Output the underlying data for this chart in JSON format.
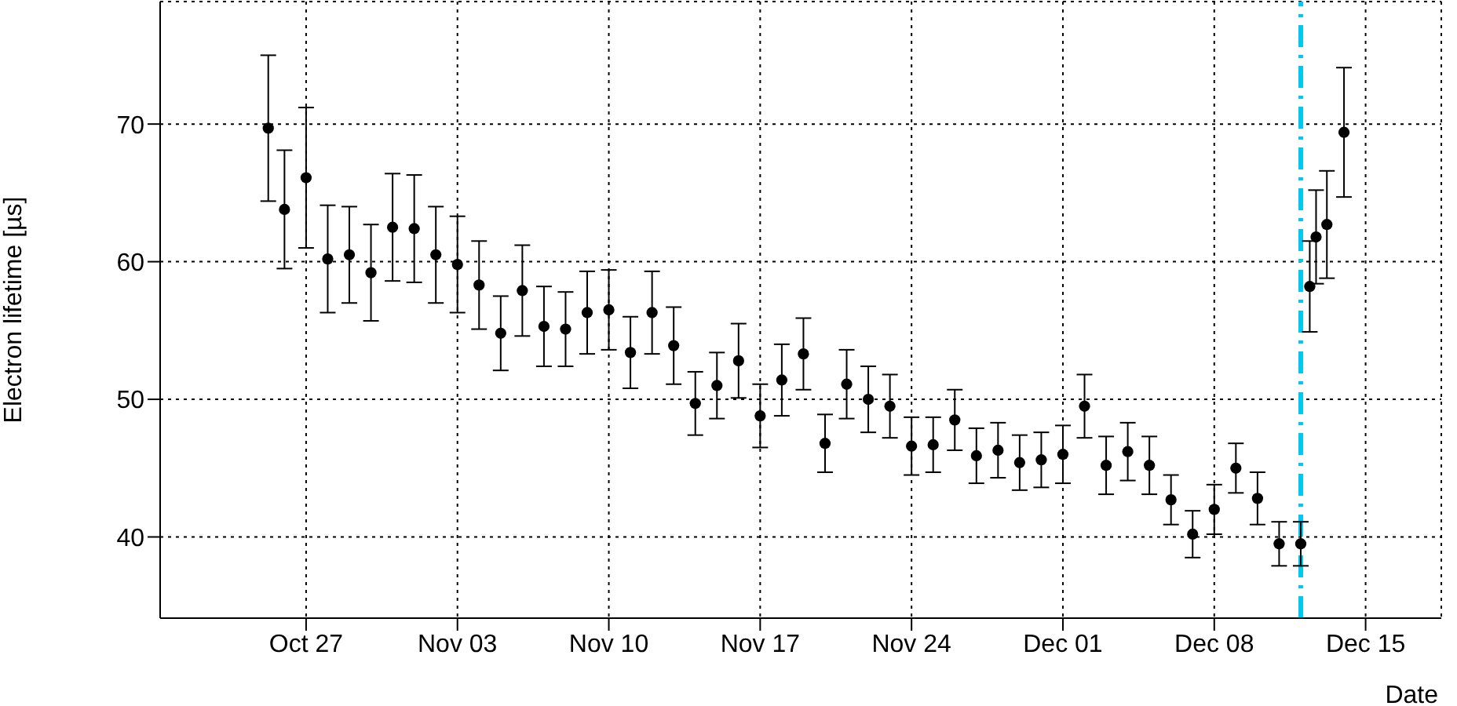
{
  "chart_data": {
    "type": "scatter",
    "xlabel": "Date",
    "ylabel": "Electron lifetime [µs]",
    "x": [
      "--10-25T06:00",
      "--10-26",
      "--10-27",
      "--10-28",
      "--10-29",
      "--10-30",
      "--10-31",
      "--11-01",
      "--11-02",
      "--11-03",
      "--11-04",
      "--11-05",
      "--11-06",
      "--11-07",
      "--11-08",
      "--11-09",
      "--11-10",
      "--11-11",
      "--11-12",
      "--11-13",
      "--11-14",
      "--11-15",
      "--11-16",
      "--11-17",
      "--11-18",
      "--11-19",
      "--11-20",
      "--11-21",
      "--11-22",
      "--11-23",
      "--11-24",
      "--11-25",
      "--11-26",
      "--11-27",
      "--11-28",
      "--11-29",
      "--11-30",
      "--12-01",
      "--12-02",
      "--12-03",
      "--12-04",
      "--12-05",
      "--12-06",
      "--12-07",
      "--12-08",
      "--12-09",
      "--12-10",
      "--12-11",
      "--12-12",
      "--12-12T10:00",
      "--12-12T17:00",
      "--12-13T05:00",
      "--12-14"
    ],
    "series": [
      {
        "color": "#000000",
        "values": [
          69.7,
          63.8,
          66.1,
          60.2,
          60.5,
          59.2,
          62.5,
          62.4,
          60.5,
          59.8,
          58.3,
          54.8,
          57.9,
          55.3,
          55.1,
          56.3,
          56.5,
          53.4,
          56.3,
          53.9,
          49.7,
          51.0,
          52.8,
          48.8,
          51.4,
          53.3,
          46.8,
          51.1,
          50.0,
          49.5,
          46.6,
          46.7,
          48.5,
          45.9,
          46.3,
          45.4,
          45.6,
          46.0,
          49.5,
          45.2,
          46.2,
          45.2,
          42.7,
          40.2,
          42.0,
          45.0,
          42.8,
          39.5,
          39.5,
          58.2,
          61.8,
          62.7,
          69.4
        ],
        "errors": [
          5.3,
          4.3,
          5.1,
          3.9,
          3.5,
          3.5,
          3.9,
          3.9,
          3.5,
          3.5,
          3.2,
          2.7,
          3.3,
          2.9,
          2.7,
          3.0,
          2.9,
          2.6,
          3.0,
          2.8,
          2.3,
          2.4,
          2.7,
          2.3,
          2.6,
          2.6,
          2.1,
          2.5,
          2.4,
          2.3,
          2.1,
          2.0,
          2.2,
          2.0,
          2.0,
          2.0,
          2.0,
          2.1,
          2.3,
          2.1,
          2.1,
          2.1,
          1.8,
          1.7,
          1.8,
          1.8,
          1.9,
          1.6,
          1.6,
          3.3,
          3.4,
          3.9,
          4.7
        ]
      }
    ],
    "xlim": [
      "--10-20T06:00",
      "--12-18T12:00"
    ],
    "xticks": [
      {
        "value": "--10-27",
        "label": "Oct 27"
      },
      {
        "value": "--11-03",
        "label": "Nov 03"
      },
      {
        "value": "--11-10",
        "label": "Nov 10"
      },
      {
        "value": "--11-17",
        "label": "Nov 17"
      },
      {
        "value": "--11-24",
        "label": "Nov 24"
      },
      {
        "value": "--12-01",
        "label": "Dec 01"
      },
      {
        "value": "--12-08",
        "label": "Dec 08"
      },
      {
        "value": "--12-15",
        "label": "Dec 15"
      }
    ],
    "ylim": [
      34.1,
      78.9
    ],
    "yticks": [
      40,
      50,
      60,
      70
    ],
    "ref_lines": [
      {
        "axis": "x",
        "value": "--12-12",
        "color": "#00c8f0",
        "line_style": "dashed"
      }
    ],
    "grid": true,
    "marker": "circle"
  }
}
